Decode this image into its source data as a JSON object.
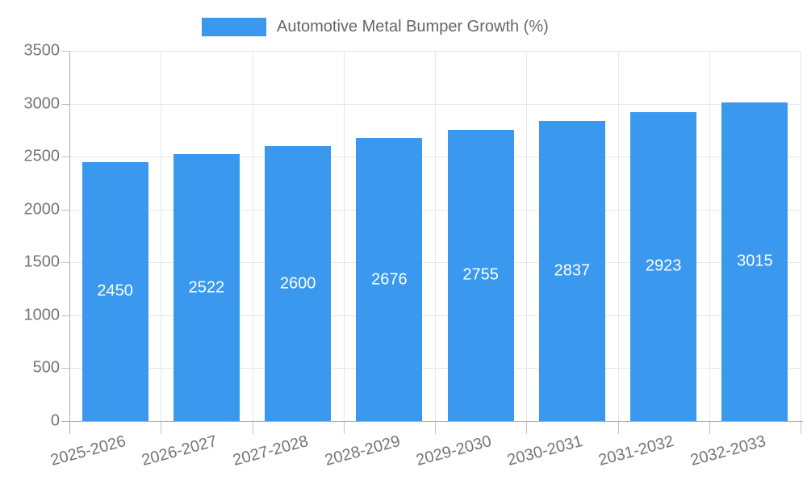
{
  "chart_data": {
    "type": "bar",
    "title": "Automotive Metal Bumper Growth (%)",
    "legend": {
      "position": "top",
      "label": "Automotive Metal Bumper Growth (%)"
    },
    "categories": [
      "2025-2026",
      "2026-2027",
      "2027-2028",
      "2028-2029",
      "2029-2030",
      "2030-2031",
      "2031-2032",
      "2032-2033"
    ],
    "series": [
      {
        "name": "Automotive Metal Bumper Growth (%)",
        "values": [
          2450,
          2522,
          2600,
          2676,
          2755,
          2837,
          2923,
          3015
        ]
      }
    ],
    "xlabel": "",
    "ylabel": "",
    "ylim": [
      0,
      3500
    ],
    "ytick_step": 500,
    "yticks": [
      0,
      500,
      1000,
      1500,
      2000,
      2500,
      3000,
      3500
    ],
    "grid": true,
    "value_labels": "inside-center",
    "colors": {
      "bar": "#3a99ef",
      "bar_value_label": "#ffffff",
      "gridline": "#e7e7e7",
      "axis": "#b0b0b0",
      "tick": "#c2c2c2",
      "tick_label": "#757575",
      "legend_label": "#666666",
      "background": "#ffffff"
    }
  }
}
